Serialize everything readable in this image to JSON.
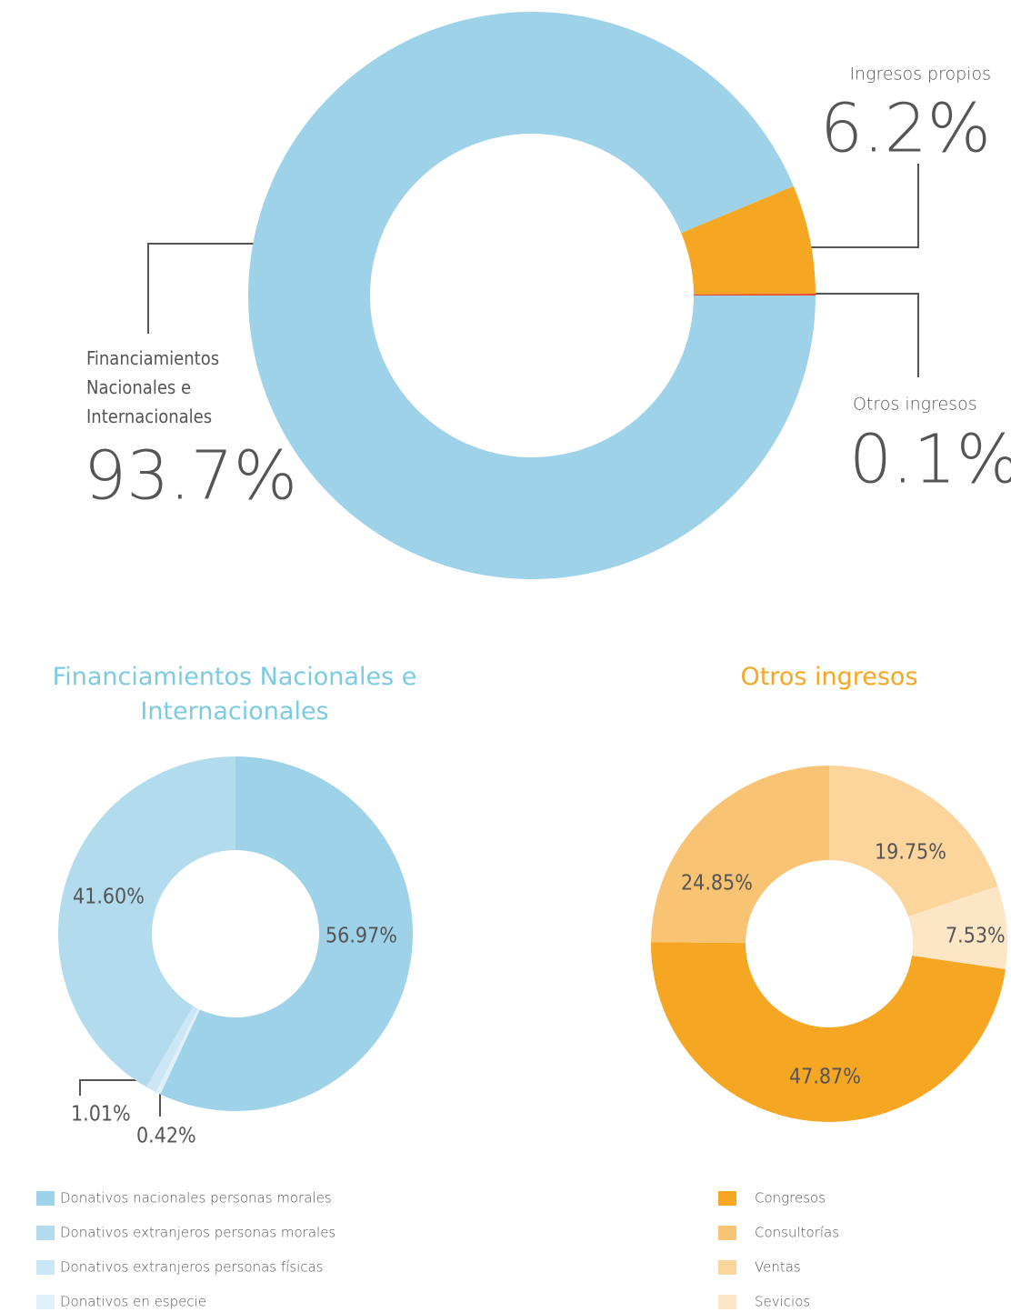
{
  "chart_data": [
    {
      "type": "donut",
      "categories": [
        "Financiamientos Nacionales e Internacionales",
        "Ingresos propios",
        "Otros ingresos"
      ],
      "values": [
        93.7,
        6.2,
        0.1
      ],
      "value_labels": [
        "93.7%",
        "6.2%",
        "0.1%"
      ],
      "colors": [
        "#9ed2e9",
        "#f5a623",
        "#e8452c"
      ]
    },
    {
      "type": "donut",
      "title": "Financiamientos Nacionales e Internacionales",
      "title_color": "#7ccbe0",
      "categories": [
        "Donativos nacionales personas morales",
        "Donativos extranjeros personas morales",
        "Donativos extranjeros personas físicas",
        "Donativos en especie"
      ],
      "values": [
        56.97,
        41.6,
        1.01,
        0.42
      ],
      "value_labels": [
        "56.97%",
        "41.60%",
        "1.01%",
        "0.42%"
      ],
      "colors": [
        "#9ed2e9",
        "#b2dcee",
        "#cbe6f4",
        "#dff0f8"
      ]
    },
    {
      "type": "donut",
      "title": "Otros ingresos",
      "title_color": "#f5a623",
      "categories": [
        "Congresos",
        "Consultorías",
        "Ventas",
        "Sevicios"
      ],
      "values": [
        47.87,
        24.85,
        19.75,
        7.53
      ],
      "value_labels": [
        "47.87%",
        "24.85%",
        "19.75%",
        "7.53%"
      ],
      "colors": [
        "#f5a623",
        "#f9c374",
        "#fcd59d",
        "#fde6c6"
      ]
    }
  ]
}
